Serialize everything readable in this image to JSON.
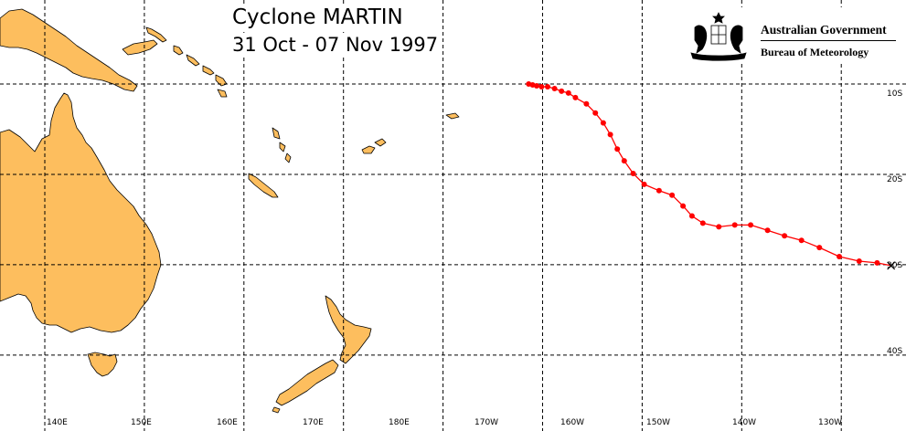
{
  "title": "Cyclone MARTIN",
  "subtitle": "31 Oct - 07 Nov 1997",
  "agency": {
    "line1": "Australian Government",
    "line2": "Bureau of Meteorology"
  },
  "longitude_labels": [
    "140E",
    "150E",
    "160E",
    "170E",
    "180E",
    "170W",
    "160W",
    "150W",
    "140W",
    "130W"
  ],
  "latitude_labels": [
    "10S",
    "20S",
    "30S",
    "40S"
  ],
  "colors": {
    "land": "#FDBE5E",
    "coast": "#000000",
    "track": "#FF0000",
    "grid": "#000000",
    "background": "#FFFFFF"
  },
  "legend": [],
  "map_extent": {
    "lon_min": 135.5,
    "lon_max": 226.5,
    "lat_min": -48.4,
    "lat_max": -0.7
  },
  "track": {
    "name": "MARTIN",
    "end_marker": "x-icon",
    "points": [
      {
        "lon": 188.6,
        "lat": -10.0
      },
      {
        "lon": 189.0,
        "lat": -10.1
      },
      {
        "lon": 189.4,
        "lat": -10.2
      },
      {
        "lon": 189.9,
        "lat": -10.3
      },
      {
        "lon": 190.5,
        "lat": -10.3
      },
      {
        "lon": 191.2,
        "lat": -10.5
      },
      {
        "lon": 191.9,
        "lat": -10.8
      },
      {
        "lon": 192.6,
        "lat": -11.0
      },
      {
        "lon": 193.3,
        "lat": -11.5
      },
      {
        "lon": 194.4,
        "lat": -12.2
      },
      {
        "lon": 195.3,
        "lat": -13.2
      },
      {
        "lon": 196.1,
        "lat": -14.3
      },
      {
        "lon": 196.8,
        "lat": -15.6
      },
      {
        "lon": 197.5,
        "lat": -17.2
      },
      {
        "lon": 198.2,
        "lat": -18.5
      },
      {
        "lon": 199.1,
        "lat": -19.9
      },
      {
        "lon": 200.2,
        "lat": -21.1
      },
      {
        "lon": 201.7,
        "lat": -21.8
      },
      {
        "lon": 203.0,
        "lat": -22.3
      },
      {
        "lon": 204.1,
        "lat": -23.5
      },
      {
        "lon": 205.0,
        "lat": -24.6
      },
      {
        "lon": 206.1,
        "lat": -25.4
      },
      {
        "lon": 207.7,
        "lat": -25.8
      },
      {
        "lon": 209.3,
        "lat": -25.6
      },
      {
        "lon": 210.9,
        "lat": -25.6
      },
      {
        "lon": 212.6,
        "lat": -26.2
      },
      {
        "lon": 214.3,
        "lat": -26.8
      },
      {
        "lon": 216.0,
        "lat": -27.3
      },
      {
        "lon": 217.8,
        "lat": -28.1
      },
      {
        "lon": 219.8,
        "lat": -29.1
      },
      {
        "lon": 221.8,
        "lat": -29.6
      },
      {
        "lon": 223.6,
        "lat": -29.8
      },
      {
        "lon": 225.0,
        "lat": -30.1
      }
    ]
  }
}
